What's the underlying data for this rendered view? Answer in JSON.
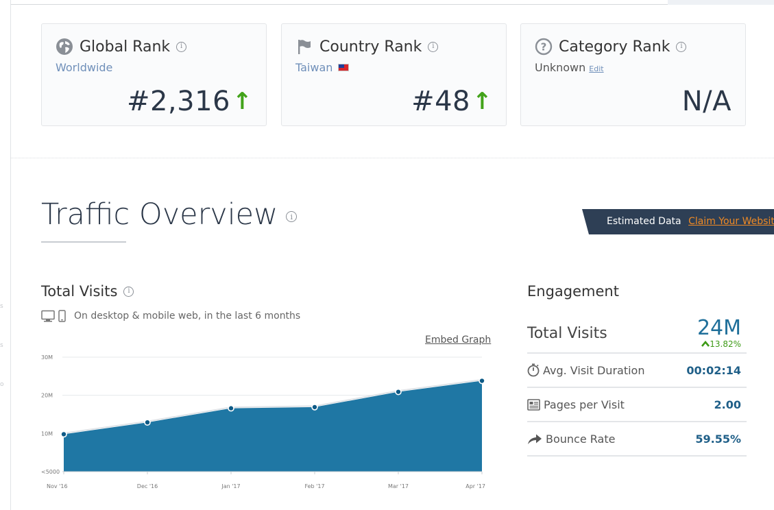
{
  "ranks": {
    "global": {
      "title": "Global Rank",
      "sub": "Worldwide",
      "value": "#2,316"
    },
    "country": {
      "title": "Country Rank",
      "sub": "Taiwan",
      "value": "#48"
    },
    "category": {
      "title": "Category Rank",
      "sub": "Unknown",
      "edit": "Edit",
      "value": "N/A"
    }
  },
  "traffic": {
    "title": "Traffic Overview",
    "banner": {
      "label": "Estimated Data",
      "link": "Claim Your Website"
    }
  },
  "visits": {
    "title": "Total Visits",
    "subtitle": "On desktop & mobile web, in the last 6 months",
    "embed": "Embed Graph"
  },
  "chart_data": {
    "type": "area",
    "categories": [
      "Nov '16",
      "Dec '16",
      "Jan '17",
      "Feb '17",
      "Mar '17",
      "Apr '17"
    ],
    "values": [
      9800000,
      12900000,
      16600000,
      16900000,
      20900000,
      23800000
    ],
    "y_ticks": [
      "<5000",
      "10M",
      "20M",
      "30M"
    ],
    "ylim": [
      0,
      30000000
    ],
    "grid": true,
    "color": "#1f77a4"
  },
  "engagement": {
    "title": "Engagement",
    "total_visits": {
      "label": "Total Visits",
      "value": "24M",
      "change": "13.82%"
    },
    "rows": [
      {
        "label": "Avg. Visit Duration",
        "value": "00:02:14",
        "icon": "stopwatch-icon"
      },
      {
        "label": "Pages per Visit",
        "value": "2.00",
        "icon": "pages-icon"
      },
      {
        "label": "Bounce Rate",
        "value": "59.55%",
        "icon": "bounce-arrow-icon"
      }
    ]
  }
}
